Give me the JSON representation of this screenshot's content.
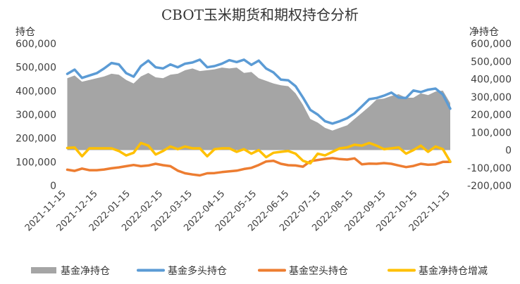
{
  "chart_data": {
    "type": "line",
    "title": "CBOT玉米期货和期权持仓分析",
    "ylabel_left": "持仓",
    "ylabel_right": "净持仓",
    "ylim_left": [
      0,
      600000
    ],
    "ylim_right": [
      -200000,
      600000
    ],
    "yticks_left": [
      "0",
      "100,000",
      "200,000",
      "300,000",
      "400,000",
      "500,000",
      "600,000"
    ],
    "yticks_right": [
      "-200,000",
      "-100,000",
      "0",
      "100,000",
      "200,000",
      "300,000",
      "400,000",
      "500,000",
      "600,000"
    ],
    "x_tick_labels": [
      "2021-11-15",
      "2021-12-15",
      "2022-01-15",
      "2022-02-15",
      "2022-03-15",
      "2022-04-15",
      "2022-05-15",
      "2022-06-15",
      "2022-07-15",
      "2022-08-15",
      "2022-09-15",
      "2022-10-15",
      "2022-11-15"
    ],
    "x": [
      "2021-11-16",
      "2021-11-23",
      "2021-11-30",
      "2021-12-07",
      "2021-12-14",
      "2021-12-21",
      "2021-12-28",
      "2022-01-04",
      "2022-01-11",
      "2022-01-18",
      "2022-01-25",
      "2022-02-01",
      "2022-02-08",
      "2022-02-15",
      "2022-02-22",
      "2022-03-01",
      "2022-03-08",
      "2022-03-15",
      "2022-03-22",
      "2022-03-29",
      "2022-04-05",
      "2022-04-12",
      "2022-04-19",
      "2022-04-26",
      "2022-05-03",
      "2022-05-10",
      "2022-05-17",
      "2022-05-24",
      "2022-05-31",
      "2022-06-07",
      "2022-06-14",
      "2022-06-21",
      "2022-06-28",
      "2022-07-05",
      "2022-07-12",
      "2022-07-19",
      "2022-07-26",
      "2022-08-02",
      "2022-08-09",
      "2022-08-16",
      "2022-08-23",
      "2022-08-30",
      "2022-09-06",
      "2022-09-13",
      "2022-09-20",
      "2022-09-27",
      "2022-10-04",
      "2022-10-11",
      "2022-10-18",
      "2022-10-25",
      "2022-11-01",
      "2022-11-08",
      "2022-11-15"
    ],
    "series": [
      {
        "name": "基金净持仓",
        "axis": "right",
        "style": "area",
        "color": "#a5a5a5",
        "values": [
          405000,
          420000,
          385000,
          395000,
          405000,
          415000,
          430000,
          425000,
          395000,
          375000,
          415000,
          435000,
          410000,
          405000,
          425000,
          430000,
          450000,
          460000,
          445000,
          450000,
          455000,
          465000,
          460000,
          465000,
          435000,
          440000,
          405000,
          390000,
          375000,
          365000,
          360000,
          320000,
          255000,
          175000,
          155000,
          125000,
          110000,
          125000,
          140000,
          175000,
          210000,
          245000,
          285000,
          290000,
          305000,
          315000,
          295000,
          295000,
          320000,
          310000,
          330000,
          335000,
          265000
        ]
      },
      {
        "name": "基金多头持仓",
        "axis": "left",
        "style": "line",
        "color": "#5b9bd5",
        "values": [
          472000,
          490000,
          455000,
          465000,
          475000,
          495000,
          518000,
          512000,
          475000,
          460000,
          505000,
          528000,
          500000,
          495000,
          512000,
          500000,
          515000,
          520000,
          532000,
          500000,
          505000,
          515000,
          530000,
          522000,
          532000,
          510000,
          528000,
          495000,
          478000,
          448000,
          445000,
          420000,
          372000,
          320000,
          300000,
          272000,
          262000,
          272000,
          285000,
          305000,
          335000,
          365000,
          370000,
          380000,
          393000,
          372000,
          370000,
          402000,
          395000,
          405000,
          410000,
          385000,
          325000
        ]
      },
      {
        "name": "基金空头持仓",
        "axis": "left",
        "style": "line",
        "color": "#ed7d31",
        "values": [
          67000,
          62000,
          72000,
          65000,
          65000,
          68000,
          73000,
          77000,
          82000,
          87000,
          82000,
          85000,
          92000,
          86000,
          82000,
          63000,
          52000,
          47000,
          43000,
          52000,
          53000,
          57000,
          60000,
          63000,
          70000,
          75000,
          87000,
          102000,
          105000,
          92000,
          86000,
          85000,
          80000,
          103000,
          108000,
          113000,
          116000,
          112000,
          110000,
          115000,
          90000,
          93000,
          92000,
          95000,
          92000,
          85000,
          78000,
          83000,
          92000,
          88000,
          90000,
          100000,
          100000
        ]
      },
      {
        "name": "基金净持仓增减",
        "axis": "right",
        "style": "line",
        "color": "#ffc000",
        "values": [
          12000,
          15000,
          -35000,
          10000,
          10000,
          10000,
          10000,
          -5000,
          -30000,
          -15000,
          40000,
          25000,
          -25000,
          -5000,
          20000,
          5000,
          20000,
          10000,
          10000,
          -35000,
          5000,
          10000,
          10000,
          -10000,
          5000,
          -20000,
          0,
          -40000,
          -15000,
          -10000,
          -5000,
          -20000,
          -60000,
          -75000,
          -20000,
          -30000,
          -10000,
          10000,
          15000,
          30000,
          25000,
          40000,
          25000,
          5000,
          10000,
          15000,
          -20000,
          0,
          25000,
          -10000,
          20000,
          5000,
          -65000
        ]
      }
    ],
    "legend_position": "bottom",
    "grid": false
  }
}
